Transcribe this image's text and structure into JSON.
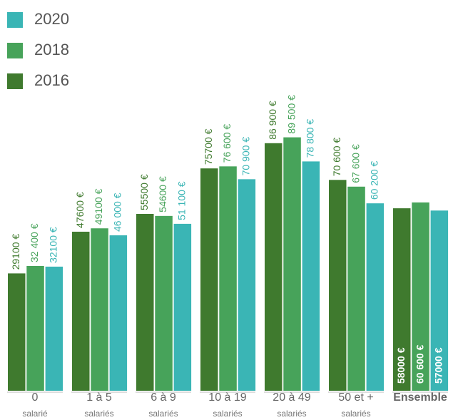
{
  "chart_data": {
    "type": "bar",
    "categories": [
      "0",
      "1 à 5",
      "6 à 9",
      "10 à 19",
      "20 à 49",
      "50 et +",
      "Ensemble"
    ],
    "category_sublabels": [
      "salarié",
      "salariés",
      "salariés",
      "salariés",
      "salariés",
      "salariés",
      null
    ],
    "series": [
      {
        "name": "2016",
        "color": "#3f7a2e",
        "values": [
          29100,
          47600,
          55500,
          75700,
          86900,
          70600,
          58000
        ],
        "value_labels": [
          "29100 €",
          "47600 €",
          "55500 €",
          "75700 €",
          "86 900 €",
          "70 600 €",
          "58000 €"
        ]
      },
      {
        "name": "2018",
        "color": "#47a35a",
        "values": [
          32400,
          49100,
          54600,
          76600,
          89500,
          67600,
          60600
        ],
        "value_labels": [
          "32 400 €",
          "49100 €",
          "54600 €",
          "76 600 €",
          "89 500 €",
          "67 600 €",
          "60 600 €"
        ]
      },
      {
        "name": "2020",
        "color": "#3ab5b5",
        "values": [
          32100,
          46000,
          51100,
          70900,
          78800,
          60200,
          57000
        ],
        "value_labels": [
          "32100 €",
          "46 000 €",
          "51 100 €",
          "70 900 €",
          "78 800 €",
          "60 200 €",
          "57000 €"
        ]
      }
    ],
    "ylim": [
      -23000,
      90000
    ]
  }
}
